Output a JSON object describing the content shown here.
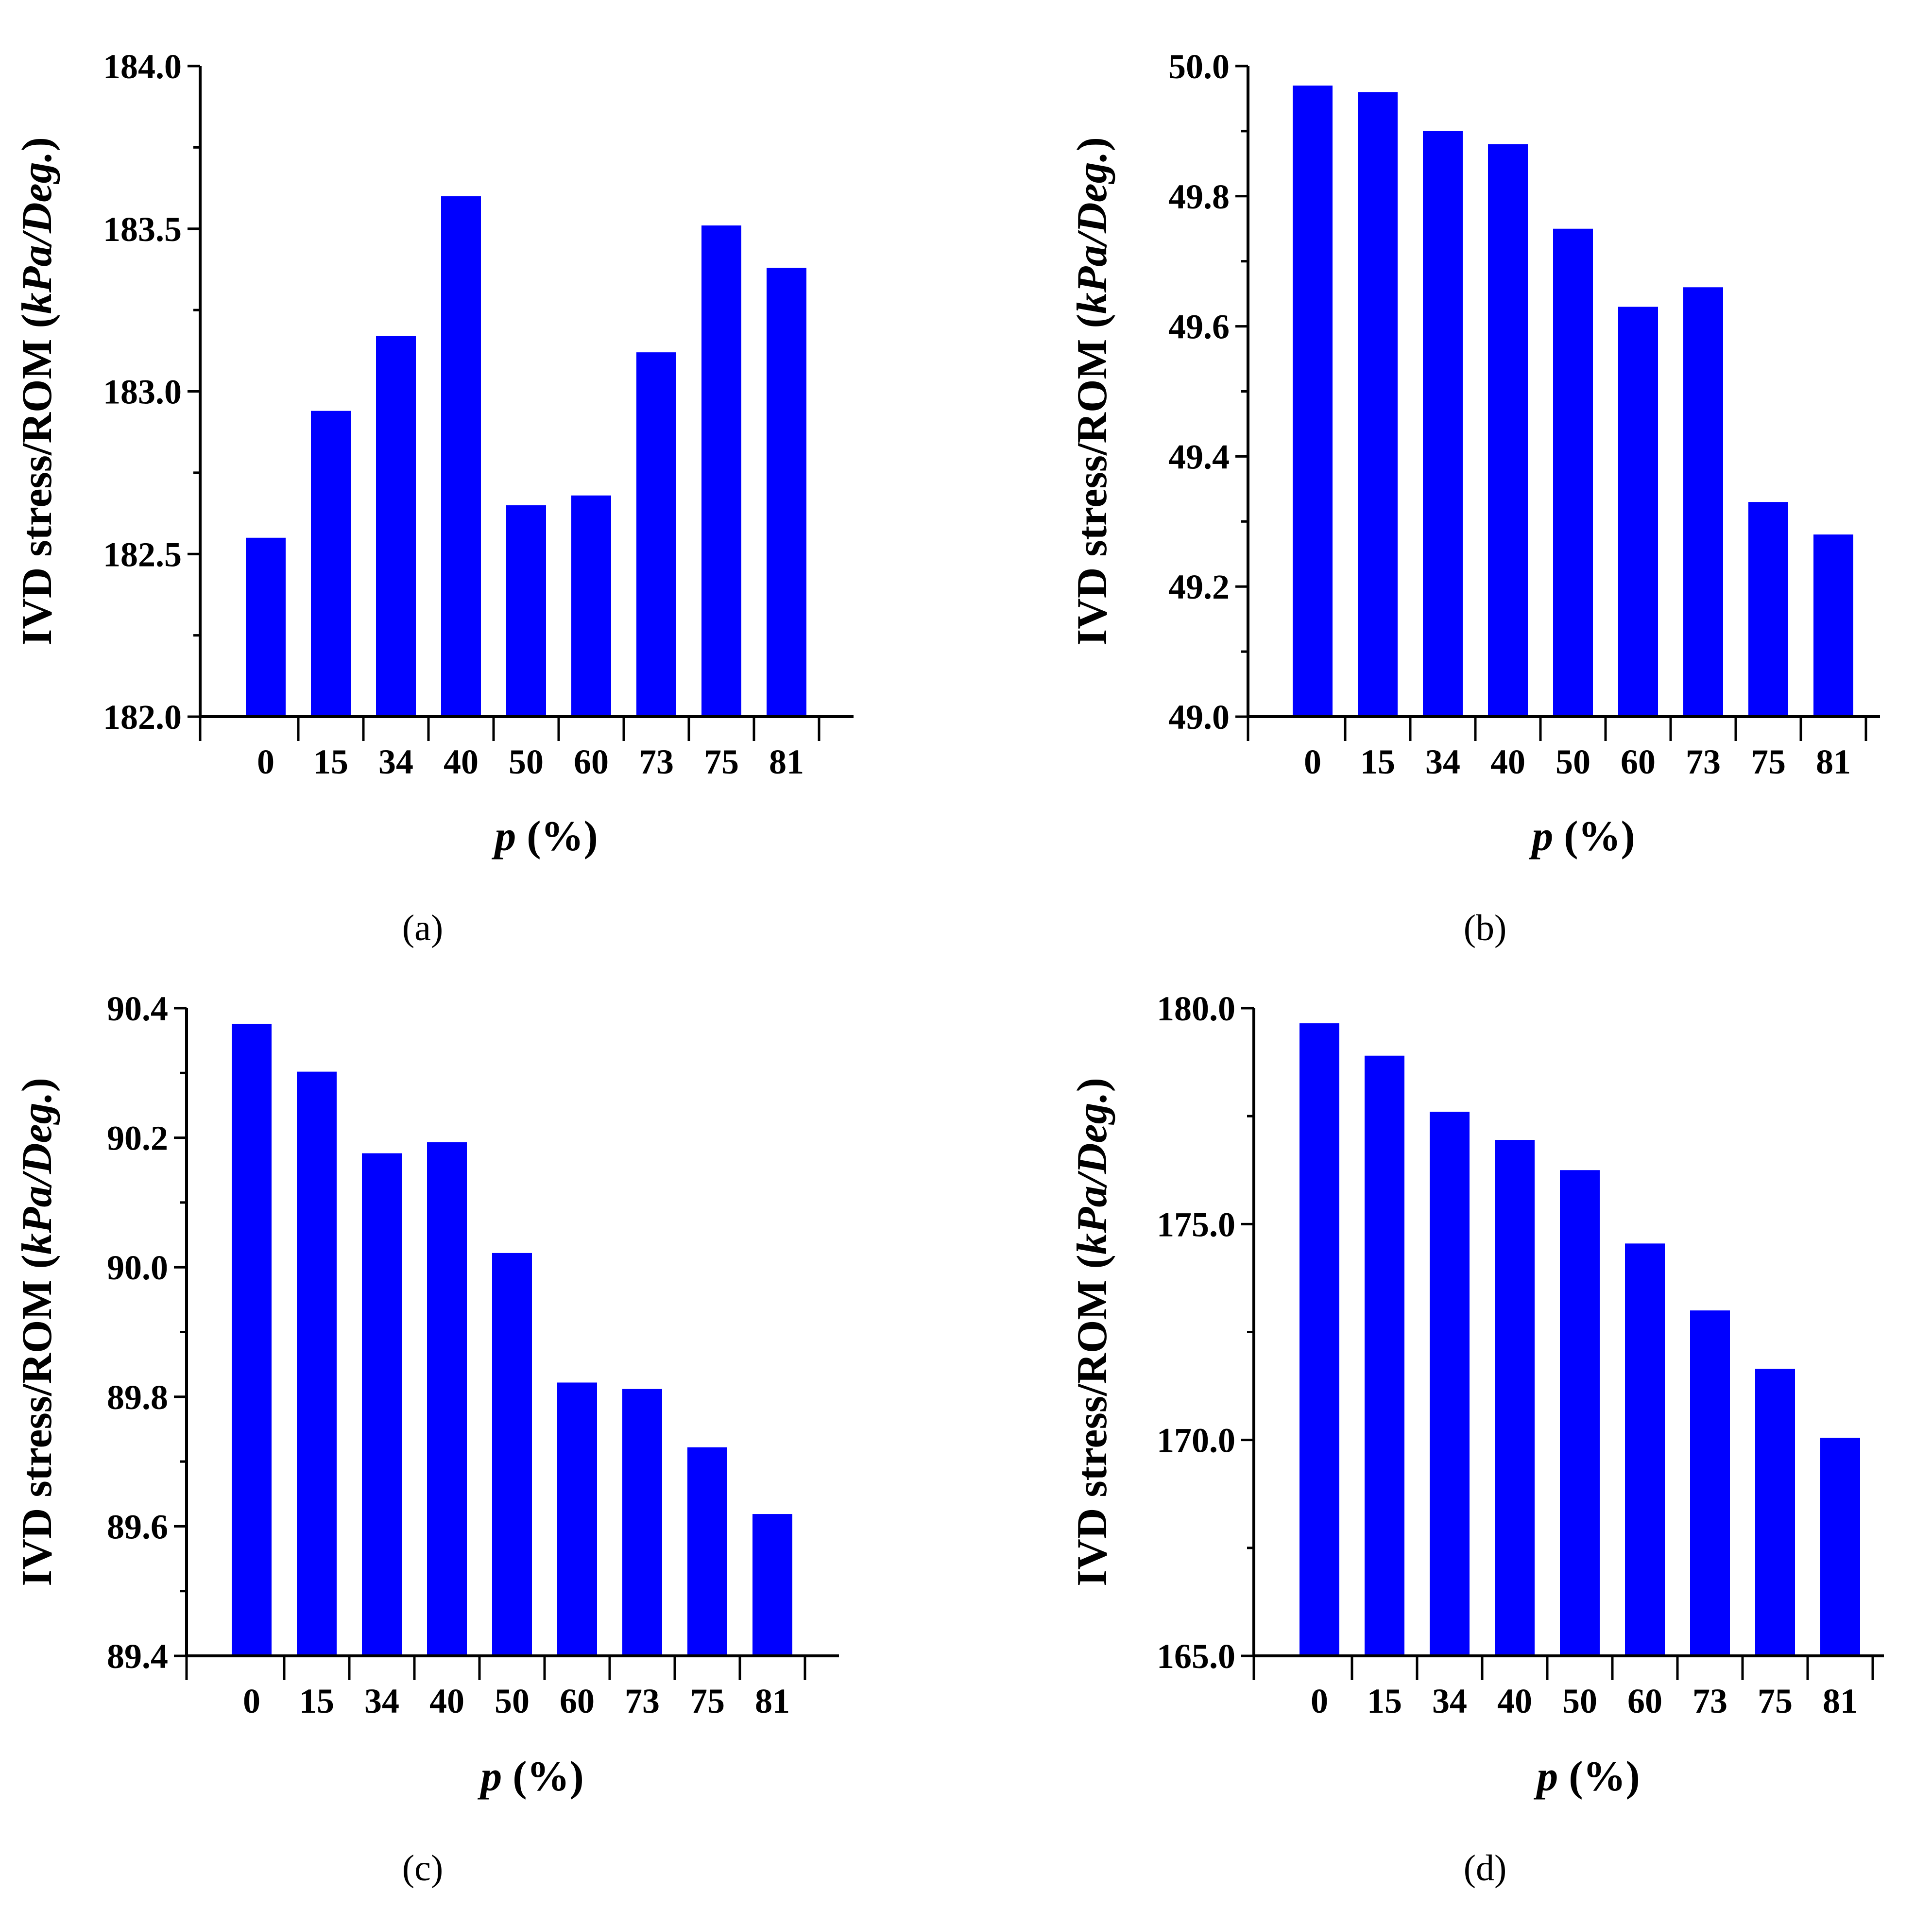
{
  "figure": {
    "bar_color": "#0000FF",
    "axis_color": "#000000"
  },
  "chart_data": [
    {
      "type": "bar",
      "panel_label": "(a)",
      "categories": [
        "0",
        "15",
        "34",
        "40",
        "50",
        "60",
        "73",
        "75",
        "81"
      ],
      "values": [
        182.55,
        182.94,
        183.17,
        183.6,
        182.65,
        182.68,
        183.12,
        183.51,
        183.38
      ],
      "ylim": [
        182.0,
        184.0
      ],
      "ytick_labels": [
        "182.0",
        "182.5",
        "183.0",
        "183.5",
        "184.0"
      ],
      "ylabel_main": "IVD stress/ROM (",
      "ylabel_units": "kPa/Deg.",
      "ylabel_close": ")",
      "xlabel_var": "p",
      "xlabel_unit": " (%)"
    },
    {
      "type": "bar",
      "panel_label": "(b)",
      "categories": [
        "0",
        "15",
        "34",
        "40",
        "50",
        "60",
        "73",
        "75",
        "81"
      ],
      "values": [
        49.97,
        49.96,
        49.9,
        49.88,
        49.75,
        49.63,
        49.66,
        49.33,
        49.28
      ],
      "ylim": [
        49.0,
        50.0
      ],
      "ytick_labels": [
        "49.0",
        "49.2",
        "49.4",
        "49.6",
        "49.8",
        "50.0"
      ],
      "ylabel_main": "IVD stress/ROM (",
      "ylabel_units": "kPa/Deg.",
      "ylabel_close": ")",
      "xlabel_var": "p",
      "xlabel_unit": " (%)"
    },
    {
      "type": "bar",
      "panel_label": "(c)",
      "categories": [
        "0",
        "15",
        "34",
        "40",
        "50",
        "60",
        "73",
        "75",
        "81"
      ],
      "values": [
        90.376,
        90.302,
        90.176,
        90.193,
        90.022,
        89.822,
        89.812,
        89.722,
        89.619
      ],
      "ylim": [
        89.4,
        90.4
      ],
      "ytick_labels": [
        "89.4",
        "89.6",
        "89.8",
        "90.0",
        "90.2",
        "90.4"
      ],
      "ylabel_main": "IVD stress/ROM (",
      "ylabel_units": "kPa/Deg.",
      "ylabel_close": ")",
      "xlabel_var": "p",
      "xlabel_unit": " (%)"
    },
    {
      "type": "bar",
      "panel_label": "(d)",
      "categories": [
        "0",
        "15",
        "34",
        "40",
        "50",
        "60",
        "73",
        "75",
        "81"
      ],
      "values": [
        179.65,
        178.9,
        177.6,
        176.95,
        176.25,
        174.55,
        173.0,
        171.65,
        170.05
      ],
      "ylim": [
        165.0,
        180.0
      ],
      "ytick_labels": [
        "165.0",
        "170.0",
        "175.0",
        "180.0"
      ],
      "ylabel_main": "IVD stress/ROM (",
      "ylabel_units": "kPa/Deg.",
      "ylabel_close": ")",
      "xlabel_var": "p",
      "xlabel_unit": " (%)"
    }
  ]
}
